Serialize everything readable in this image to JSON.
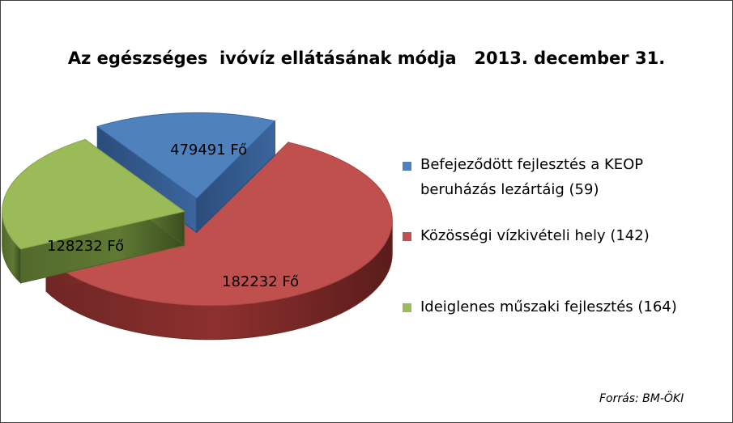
{
  "chart_data": {
    "type": "pie",
    "title": "Az egészséges  ivóvíz ellátásának módja   2013. december 31.",
    "slices": [
      {
        "legend": "Befejeződött fejlesztés a KEOP beruházás lezártáig  (59)",
        "legend_line1": "Befejeződött fejlesztés a KEOP",
        "legend_line2": "beruházás lezártáig  (59)",
        "label": "128232 Fő",
        "value": 128232,
        "color": "#4f81bd"
      },
      {
        "legend": "Közösségi vízkivételi hely (142)",
        "label": "479491  Fő",
        "value": 479491,
        "color": "#c0504d"
      },
      {
        "legend": "Ideiglenes műszaki fejlesztés (164)",
        "label": "182232 Fő",
        "value": 182232,
        "color": "#9bbb59"
      }
    ],
    "exploded": true,
    "three_d": true,
    "legend_position": "right",
    "source": "Forrás: BM-ÖKI"
  }
}
